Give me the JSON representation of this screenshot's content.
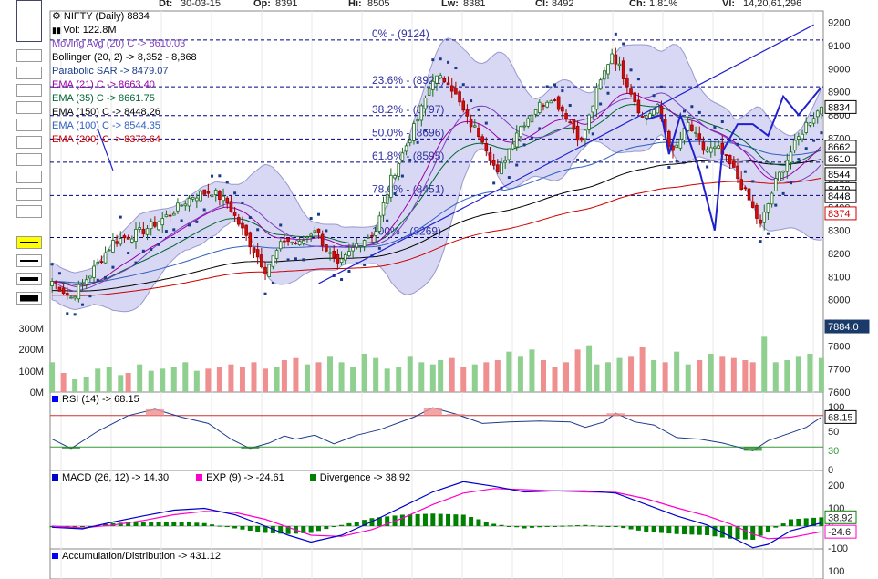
{
  "header": {
    "date_label": "Dt:",
    "date_value": "30-03-15",
    "open_label": "Op:",
    "open_value": "8391",
    "high_label": "Hi:",
    "high_value": "8505",
    "low_label": "Lw:",
    "low_value": "8381",
    "close_label": "Cl:",
    "close_value": "8492",
    "change_label": "Ch:",
    "change_value": "1.81%",
    "volume_label": "Vl:",
    "volume_value": "14,20,61,296"
  },
  "toolbar": {
    "colors": [
      "#0000ff",
      "#ff0000",
      "#008000",
      "#ffff00",
      "#000000",
      "#a52a2a",
      "#ffffff",
      "#00ffff",
      "#800080",
      "#9400d3",
      "#191970"
    ],
    "line_styles": [
      "thin-yellow",
      "thin",
      "medium",
      "thick",
      "thicker"
    ]
  },
  "legend": {
    "title": "NIFTY (Daily) 8834",
    "volume": "Vol: 122.8M",
    "items": [
      {
        "text": "Moving Avg (20) C -> 8610.03",
        "color": "#7b3fbf"
      },
      {
        "text": "Bollinger (20, 2) -> 8,352 - 8,868",
        "color": "#000000"
      },
      {
        "text": "Parabolic SAR -> 8479.07",
        "color": "#1a3a8a"
      },
      {
        "text": "EMA (21) C -> 8663.40",
        "color": "#9900aa"
      },
      {
        "text": "EMA (35) C -> 8661.75",
        "color": "#006633"
      },
      {
        "text": "EMA (150) C -> 8448.26",
        "color": "#000000"
      },
      {
        "text": "EMA (100) C -> 8544.35",
        "color": "#3060c0"
      },
      {
        "text": "EMA (200) C -> 8373.64",
        "color": "#cc0000"
      }
    ]
  },
  "fib_levels": [
    {
      "label": "0% - (9124)",
      "price": 9124
    },
    {
      "label": "23.6% - (8922)",
      "price": 8922
    },
    {
      "label": "38.2% - (8797)",
      "price": 8797
    },
    {
      "label": "50.0% - (8696)",
      "price": 8696
    },
    {
      "label": "61.8% - (8595)",
      "price": 8595
    },
    {
      "label": "78.6% - (8451)",
      "price": 8451
    },
    {
      "label": "100% - (8269)",
      "price": 8269
    }
  ],
  "price_axis": {
    "ticks": [
      "9200",
      "9100",
      "9000",
      "8900",
      "8800",
      "8700",
      "8600",
      "8500",
      "8400",
      "8300",
      "8200",
      "8100",
      "8000",
      "7900",
      "7800",
      "7700",
      "7600"
    ],
    "badges": [
      {
        "text": "8834",
        "price": 8834,
        "style": "box"
      },
      {
        "text": "8662",
        "price": 8662,
        "style": "box"
      },
      {
        "text": "8610",
        "price": 8610,
        "style": "box"
      },
      {
        "text": "8544",
        "price": 8544,
        "style": "box"
      },
      {
        "text": "8479",
        "price": 8479,
        "style": "box"
      },
      {
        "text": "8448",
        "price": 8448,
        "style": "box"
      },
      {
        "text": "8374",
        "price": 8374,
        "style": "red"
      },
      {
        "text": "7884.0",
        "price": 7884,
        "style": "navy"
      }
    ]
  },
  "volume_axis": [
    "300M",
    "200M",
    "100M",
    "0M"
  ],
  "rsi": {
    "label": "RSI (14) -> 68.15",
    "axis": [
      "100",
      "50",
      "30",
      "0"
    ],
    "value_badge": "68.15",
    "levels": [
      70,
      30
    ]
  },
  "macd": {
    "macd_label": "MACD (26, 12) -> 14.30",
    "exp_label": "EXP (9) -> -24.61",
    "div_label": "Divergence -> 38.92",
    "axis": [
      "200",
      "100",
      "0",
      "-100"
    ],
    "badges": [
      "38.92",
      "-24.6"
    ],
    "colors": {
      "macd": "#0000cc",
      "exp": "#ff00cc",
      "div": "#008000"
    }
  },
  "ad": {
    "label": "Accumulation/Distribution -> 431.12",
    "axis": [
      "100"
    ]
  },
  "chart_data": {
    "type": "candlestick",
    "title": "NIFTY (Daily) 8834",
    "ylim": [
      7600,
      9250
    ],
    "anchors": [
      [
        0,
        8080
      ],
      [
        5,
        8010
      ],
      [
        10,
        8110
      ],
      [
        16,
        8250
      ],
      [
        24,
        8300
      ],
      [
        30,
        8360
      ],
      [
        37,
        8450
      ],
      [
        42,
        8470
      ],
      [
        46,
        8420
      ],
      [
        50,
        8300
      ],
      [
        56,
        8130
      ],
      [
        61,
        8260
      ],
      [
        65,
        8240
      ],
      [
        69,
        8310
      ],
      [
        72,
        8220
      ],
      [
        75,
        8140
      ],
      [
        80,
        8240
      ],
      [
        85,
        8300
      ],
      [
        89,
        8520
      ],
      [
        96,
        8780
      ],
      [
        100,
        8960
      ],
      [
        104,
        8950
      ],
      [
        109,
        8780
      ],
      [
        113,
        8700
      ],
      [
        117,
        8540
      ],
      [
        122,
        8730
      ],
      [
        127,
        8830
      ],
      [
        131,
        8880
      ],
      [
        135,
        8800
      ],
      [
        139,
        8680
      ],
      [
        143,
        8900
      ],
      [
        147,
        9070
      ],
      [
        151,
        8940
      ],
      [
        155,
        8790
      ],
      [
        159,
        8830
      ],
      [
        163,
        8630
      ],
      [
        167,
        8760
      ],
      [
        171,
        8650
      ],
      [
        175,
        8650
      ],
      [
        179,
        8560
      ],
      [
        183,
        8430
      ],
      [
        186,
        8320
      ],
      [
        190,
        8510
      ],
      [
        194,
        8640
      ],
      [
        198,
        8760
      ],
      [
        202,
        8834
      ]
    ],
    "volume_M": [
      140,
      90,
      60,
      70,
      110,
      120,
      80,
      90,
      130,
      100,
      110,
      120,
      140,
      100,
      110,
      120,
      130,
      120,
      140,
      110,
      120,
      150,
      160,
      130,
      140,
      170,
      140,
      120,
      180,
      160,
      110,
      120,
      170,
      140,
      130,
      150,
      160,
      120,
      130,
      140,
      150,
      190,
      170,
      200,
      150,
      120,
      140,
      200,
      220,
      130,
      140,
      160,
      170,
      210,
      150,
      140,
      190,
      130,
      150,
      180,
      170,
      160,
      150,
      140,
      260,
      140,
      150,
      170,
      180,
      160
    ],
    "rsi_points": [
      [
        0,
        40
      ],
      [
        5,
        28
      ],
      [
        12,
        50
      ],
      [
        20,
        70
      ],
      [
        27,
        78
      ],
      [
        34,
        68
      ],
      [
        41,
        60
      ],
      [
        47,
        40
      ],
      [
        52,
        28
      ],
      [
        57,
        35
      ],
      [
        61,
        44
      ],
      [
        64,
        40
      ],
      [
        69,
        45
      ],
      [
        74,
        34
      ],
      [
        80,
        45
      ],
      [
        86,
        52
      ],
      [
        95,
        68
      ],
      [
        100,
        80
      ],
      [
        106,
        72
      ],
      [
        113,
        60
      ],
      [
        120,
        62
      ],
      [
        128,
        63
      ],
      [
        136,
        62
      ],
      [
        140,
        55
      ],
      [
        145,
        62
      ],
      [
        148,
        73
      ],
      [
        153,
        62
      ],
      [
        158,
        58
      ],
      [
        164,
        42
      ],
      [
        170,
        40
      ],
      [
        176,
        35
      ],
      [
        180,
        30
      ],
      [
        184,
        25
      ],
      [
        188,
        38
      ],
      [
        194,
        48
      ],
      [
        198,
        55
      ],
      [
        202,
        68
      ]
    ],
    "macd_points": [
      [
        0,
        -5
      ],
      [
        8,
        -12
      ],
      [
        16,
        18
      ],
      [
        24,
        45
      ],
      [
        32,
        70
      ],
      [
        40,
        78
      ],
      [
        48,
        50
      ],
      [
        56,
        0
      ],
      [
        62,
        -40
      ],
      [
        68,
        -70
      ],
      [
        76,
        -40
      ],
      [
        84,
        20
      ],
      [
        92,
        85
      ],
      [
        100,
        150
      ],
      [
        108,
        195
      ],
      [
        116,
        175
      ],
      [
        124,
        150
      ],
      [
        132,
        155
      ],
      [
        140,
        155
      ],
      [
        148,
        145
      ],
      [
        156,
        95
      ],
      [
        164,
        45
      ],
      [
        172,
        5
      ],
      [
        178,
        -45
      ],
      [
        184,
        -95
      ],
      [
        188,
        -80
      ],
      [
        194,
        -20
      ],
      [
        202,
        14
      ]
    ],
    "exp_points": [
      [
        0,
        0
      ],
      [
        8,
        -8
      ],
      [
        16,
        5
      ],
      [
        24,
        25
      ],
      [
        32,
        50
      ],
      [
        40,
        65
      ],
      [
        48,
        60
      ],
      [
        56,
        30
      ],
      [
        62,
        -5
      ],
      [
        68,
        -40
      ],
      [
        76,
        -45
      ],
      [
        84,
        -15
      ],
      [
        92,
        35
      ],
      [
        100,
        95
      ],
      [
        108,
        145
      ],
      [
        116,
        165
      ],
      [
        124,
        160
      ],
      [
        132,
        155
      ],
      [
        140,
        150
      ],
      [
        148,
        148
      ],
      [
        156,
        120
      ],
      [
        164,
        80
      ],
      [
        172,
        45
      ],
      [
        178,
        10
      ],
      [
        184,
        -35
      ],
      [
        188,
        -55
      ],
      [
        194,
        -50
      ],
      [
        202,
        -24.6
      ]
    ]
  }
}
